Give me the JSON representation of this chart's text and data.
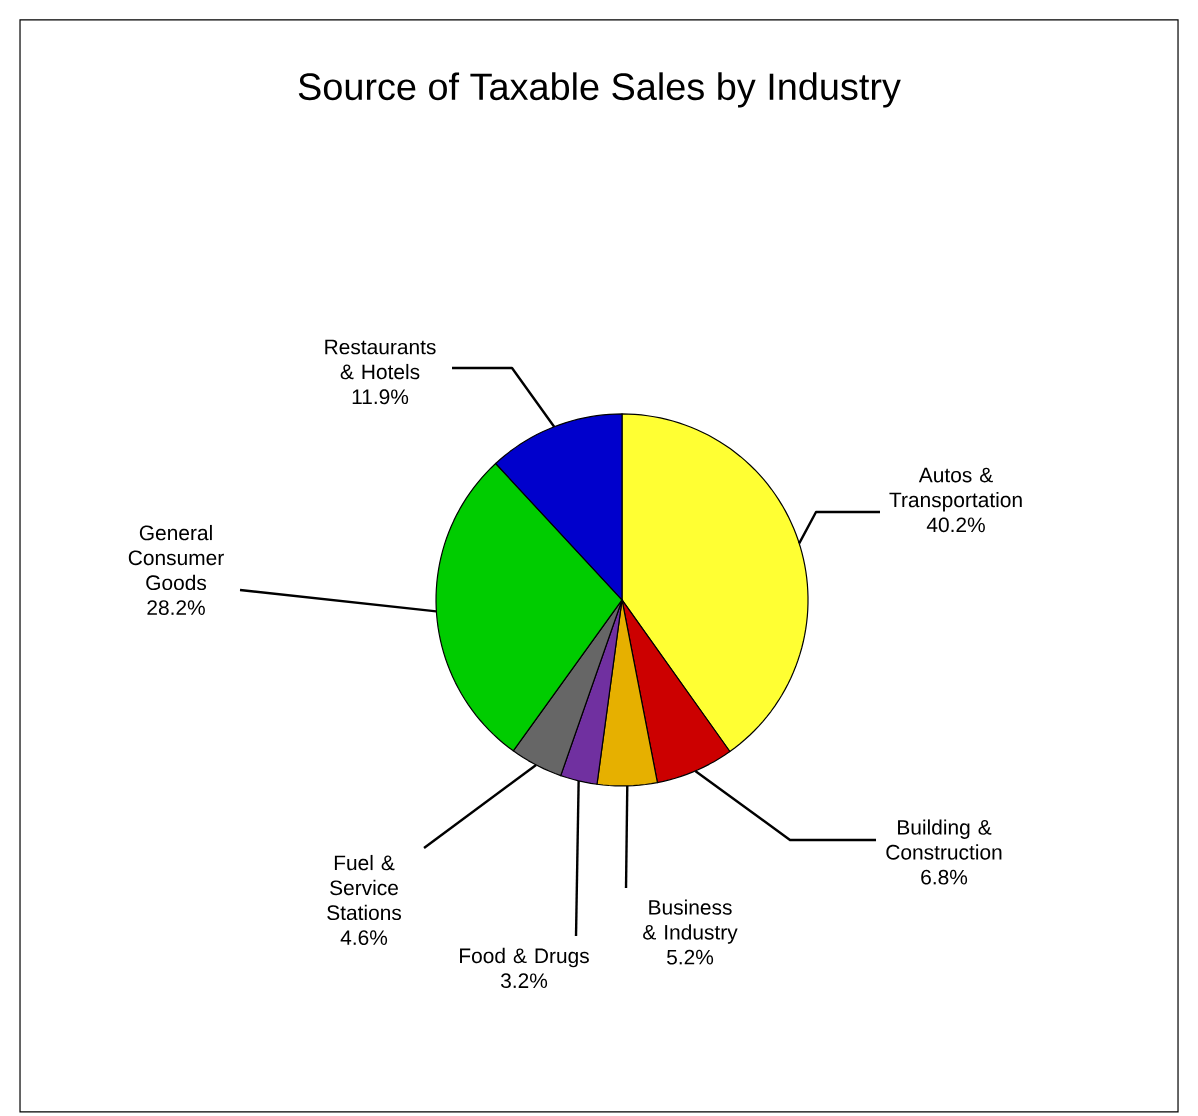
{
  "chart_data": {
    "type": "pie",
    "title": "Source of Taxable Sales by Industry",
    "categories": [
      "Autos & Transportation",
      "Building & Construction",
      "Business & Industry",
      "Food & Drugs",
      "Fuel & Service Stations",
      "General Consumer Goods",
      "Restaurants & Hotels"
    ],
    "values": [
      40.2,
      6.8,
      5.2,
      3.2,
      4.6,
      28.2,
      11.9
    ],
    "value_labels": [
      "40.2%",
      "6.8%",
      "5.2%",
      "3.2%",
      "4.6%",
      "28.2%",
      "11.9%"
    ],
    "colors": [
      "#ffff33",
      "#cc0000",
      "#e6b000",
      "#7030a0",
      "#666666",
      "#00cc00",
      "#0000cc"
    ]
  }
}
